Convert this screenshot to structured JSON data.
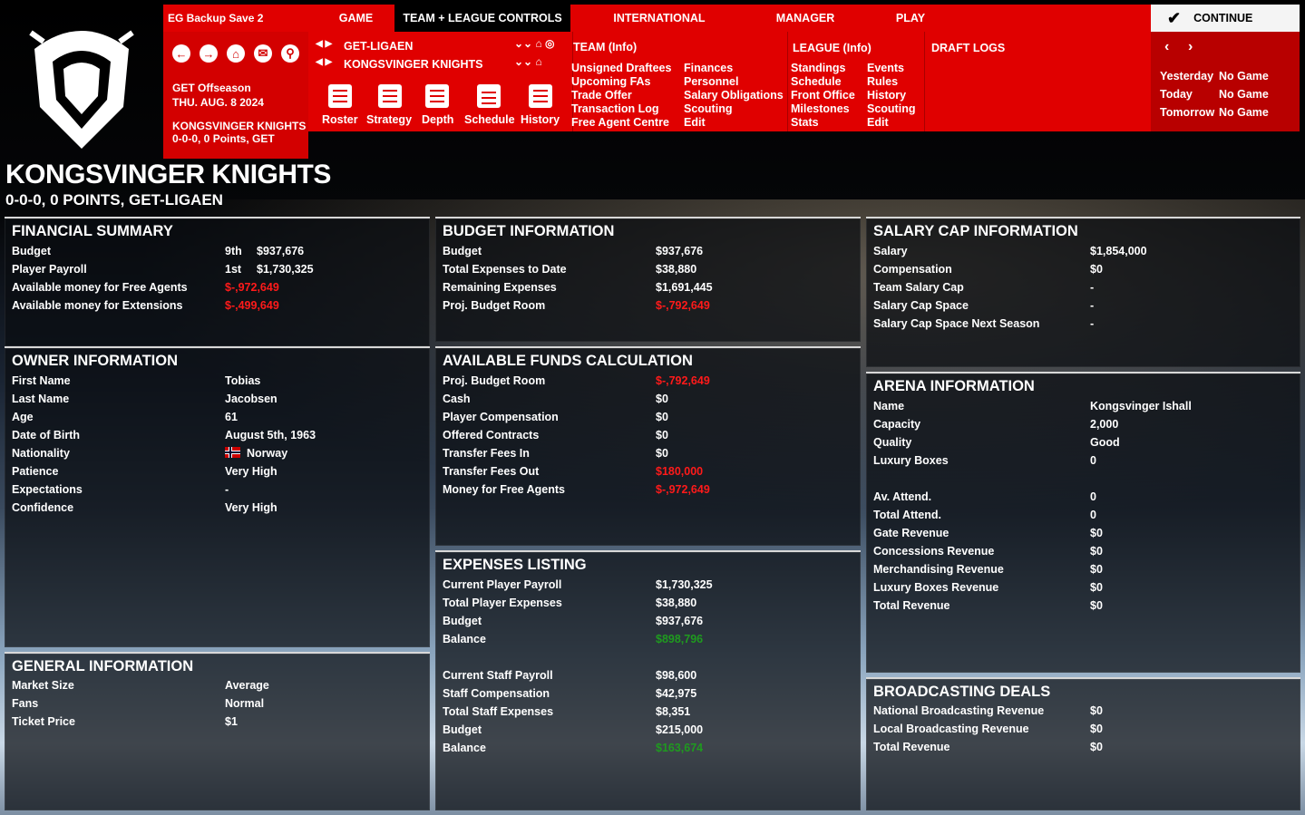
{
  "topmenu": {
    "save": "EG Backup Save 2",
    "game": "GAME",
    "team_league": "TEAM + LEAGUE CONTROLS",
    "international": "INTERNATIONAL",
    "manager": "MANAGER",
    "play": "PLAY",
    "continue": "CONTINUE"
  },
  "nav": {
    "status": "GET Offseason",
    "date": "THU. AUG. 8 2024",
    "team": "KONGSVINGER KNIGHTS",
    "record": "0-0-0, 0 Points, GET"
  },
  "selectors": {
    "league": "GET-LIGAEN",
    "team": "KONGSVINGER KNIGHTS"
  },
  "toolbar": {
    "roster": "Roster",
    "strategy": "Strategy",
    "depth": "Depth",
    "schedule": "Schedule",
    "history": "History"
  },
  "team_menu": {
    "header": "TEAM (Info)",
    "col1": [
      "Unsigned Draftees",
      "Upcoming FAs",
      "Trade Offer",
      "Transaction Log",
      "Free Agent Centre"
    ],
    "col2": [
      "Finances",
      "Personnel",
      "Salary Obligations",
      "Scouting",
      "Edit"
    ]
  },
  "league_menu": {
    "header": "LEAGUE (Info)",
    "col1": [
      "Standings",
      "Schedule",
      "Front Office",
      "Milestones",
      "Stats"
    ],
    "col2": [
      "Events",
      "Rules",
      "History",
      "Scouting",
      "Edit"
    ]
  },
  "draft_logs": "DRAFT LOGS",
  "days": [
    {
      "label": "Yesterday",
      "value": "No Game"
    },
    {
      "label": "Today",
      "value": "No Game"
    },
    {
      "label": "Tomorrow",
      "value": "No Game"
    }
  ],
  "title": "KONGSVINGER KNIGHTS",
  "subtitle": "0-0-0, 0 POINTS, GET-LIGAEN",
  "financial": {
    "title": "FINANCIAL SUMMARY",
    "rows": [
      {
        "label": "Budget",
        "rank": "9th",
        "value": "$937,676"
      },
      {
        "label": "Player Payroll",
        "rank": "1st",
        "value": "$1,730,325"
      },
      {
        "label": "Available money for Free Agents",
        "rank": "",
        "value": "$-,972,649"
      },
      {
        "label": "Available money for Extensions",
        "rank": "",
        "value": "$-,499,649"
      }
    ]
  },
  "owner": {
    "title": "OWNER INFORMATION",
    "rows": [
      {
        "label": "First Name",
        "value": "Tobias"
      },
      {
        "label": "Last Name",
        "value": "Jacobsen"
      },
      {
        "label": "Age",
        "value": "61"
      },
      {
        "label": "Date of Birth",
        "value": "August 5th, 1963"
      },
      {
        "label": "Nationality",
        "value": "Norway"
      },
      {
        "label": "Patience",
        "value": "Very High"
      },
      {
        "label": "Expectations",
        "value": "-"
      },
      {
        "label": "Confidence",
        "value": "Very High"
      }
    ]
  },
  "general": {
    "title": "GENERAL INFORMATION",
    "rows": [
      {
        "label": "Market Size",
        "value": "Average"
      },
      {
        "label": "Fans",
        "value": "Normal"
      },
      {
        "label": "Ticket Price",
        "value": "$1"
      }
    ]
  },
  "budget": {
    "title": "BUDGET INFORMATION",
    "rows": [
      {
        "label": "Budget",
        "value": "$937,676"
      },
      {
        "label": "Total Expenses to Date",
        "value": "$38,880"
      },
      {
        "label": "Remaining Expenses",
        "value": "$1,691,445"
      },
      {
        "label": "Proj. Budget Room",
        "value": "$-,792,649"
      }
    ]
  },
  "funds": {
    "title": "AVAILABLE FUNDS CALCULATION",
    "rows": [
      {
        "label": "Proj. Budget Room",
        "value": "$-,792,649"
      },
      {
        "label": "Cash",
        "value": "$0"
      },
      {
        "label": "Player Compensation",
        "value": "$0"
      },
      {
        "label": "Offered Contracts",
        "value": "$0"
      },
      {
        "label": "Transfer Fees In",
        "value": "$0"
      },
      {
        "label": "Transfer Fees Out",
        "value": "$180,000"
      },
      {
        "label": "Money for Free Agents",
        "value": "$-,972,649"
      }
    ]
  },
  "expenses": {
    "title": "EXPENSES LISTING",
    "rows": [
      {
        "label": "Current Player Payroll",
        "value": "$1,730,325"
      },
      {
        "label": "Total Player Expenses",
        "value": "$38,880"
      },
      {
        "label": "Budget",
        "value": "$937,676"
      },
      {
        "label": "Balance",
        "value": "$898,796"
      },
      {
        "label": "Current Staff Payroll",
        "value": "$98,600"
      },
      {
        "label": "Staff Compensation",
        "value": "$42,975"
      },
      {
        "label": "Total Staff Expenses",
        "value": "$8,351"
      },
      {
        "label": "Budget",
        "value": "$215,000"
      },
      {
        "label": "Balance",
        "value": "$163,674"
      }
    ]
  },
  "salarycap": {
    "title": "SALARY CAP INFORMATION",
    "rows": [
      {
        "label": "Salary",
        "value": "$1,854,000"
      },
      {
        "label": "Compensation",
        "value": "$0"
      },
      {
        "label": "Team Salary Cap",
        "value": "-"
      },
      {
        "label": "Salary Cap Space",
        "value": "-"
      },
      {
        "label": "Salary Cap Space Next Season",
        "value": "-"
      }
    ]
  },
  "arena": {
    "title": "ARENA INFORMATION",
    "rows": [
      {
        "label": "Name",
        "value": "Kongsvinger Ishall"
      },
      {
        "label": "Capacity",
        "value": "2,000"
      },
      {
        "label": "Quality",
        "value": "Good"
      },
      {
        "label": "Luxury Boxes",
        "value": "0"
      },
      {
        "label": "Av. Attend.",
        "value": "0"
      },
      {
        "label": "Total Attend.",
        "value": "0"
      },
      {
        "label": "Gate Revenue",
        "value": "$0"
      },
      {
        "label": "Concessions Revenue",
        "value": "$0"
      },
      {
        "label": "Merchandising Revenue",
        "value": "$0"
      },
      {
        "label": "Luxury Boxes Revenue",
        "value": "$0"
      },
      {
        "label": "Total Revenue",
        "value": "$0"
      }
    ]
  },
  "broadcast": {
    "title": "BROADCASTING DEALS",
    "rows": [
      {
        "label": "National Broadcasting Revenue",
        "value": "$0"
      },
      {
        "label": "Local Broadcasting Revenue",
        "value": "$0"
      },
      {
        "label": "Total Revenue",
        "value": "$0"
      }
    ]
  },
  "colors": {
    "accent": "#e00000",
    "negative": "#ff1a1a",
    "positive": "#1f9a1f"
  },
  "icons": [
    "back-arrow-icon",
    "forward-arrow-icon",
    "home-icon",
    "mail-icon",
    "search-icon",
    "checkmark-icon",
    "roster-icon",
    "strategy-icon",
    "depth-icon",
    "schedule-icon",
    "history-icon"
  ]
}
